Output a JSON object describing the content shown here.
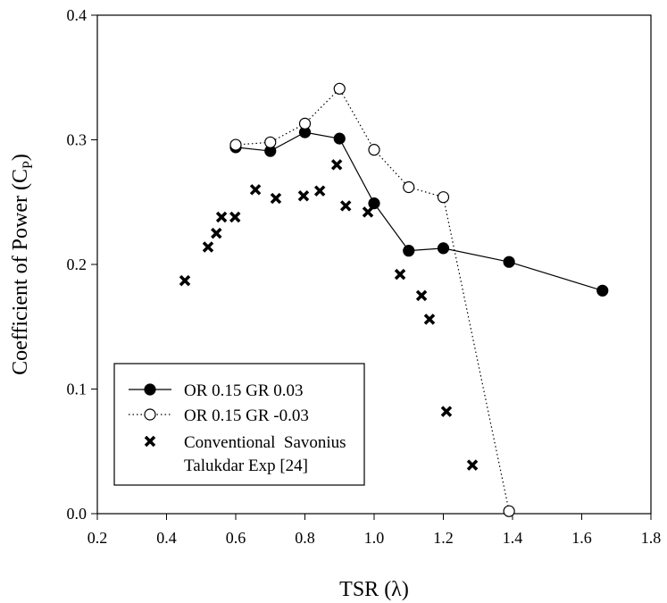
{
  "chart_data": {
    "type": "scatter",
    "title": "",
    "xlabel": "TSR (λ)",
    "ylabel_main": "Coefficient of Power (C",
    "ylabel_sub": "P",
    "ylabel_end": ")",
    "xlim": [
      0.2,
      1.8
    ],
    "ylim": [
      0.0,
      0.4
    ],
    "xticks": [
      0.2,
      0.4,
      0.6,
      0.8,
      1.0,
      1.2,
      1.4,
      1.6,
      1.8
    ],
    "xtick_labels": [
      "0.2",
      "0.4",
      "0.6",
      "0.8",
      "1.0",
      "1.2",
      "1.4",
      "1.6",
      "1.8"
    ],
    "yticks": [
      0.0,
      0.1,
      0.2,
      0.3,
      0.4
    ],
    "ytick_labels": [
      "0.0",
      "0.1",
      "0.2",
      "0.3",
      "0.4"
    ],
    "grid": false,
    "legend_position": "bottom-left",
    "series": [
      {
        "name": "OR 0.15 GR 0.03",
        "style": "solid-filled-circle",
        "x": [
          0.6,
          0.7,
          0.8,
          0.9,
          1.0,
          1.1,
          1.2,
          1.39,
          1.66
        ],
        "y": [
          0.294,
          0.291,
          0.306,
          0.301,
          0.249,
          0.211,
          0.213,
          0.202,
          0.179
        ]
      },
      {
        "name": "OR 0.15 GR -0.03",
        "style": "dotted-open-circle",
        "x": [
          0.6,
          0.7,
          0.8,
          0.9,
          1.0,
          1.1,
          1.2,
          1.39
        ],
        "y": [
          0.296,
          0.298,
          0.313,
          0.341,
          0.292,
          0.262,
          0.254,
          0.002
        ]
      },
      {
        "name": "Conventional  Savonius",
        "name_line2": "Talukdar Exp [24]",
        "style": "x-marker",
        "x": [
          0.453,
          0.52,
          0.544,
          0.559,
          0.598,
          0.657,
          0.716,
          0.796,
          0.843,
          0.892,
          0.918,
          0.982,
          1.075,
          1.137,
          1.16,
          1.209,
          1.284
        ],
        "y": [
          0.187,
          0.214,
          0.225,
          0.238,
          0.238,
          0.26,
          0.253,
          0.255,
          0.259,
          0.28,
          0.247,
          0.242,
          0.192,
          0.175,
          0.156,
          0.082,
          0.039
        ]
      }
    ]
  }
}
